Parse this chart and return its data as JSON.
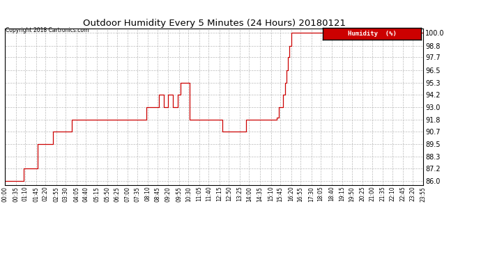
{
  "title": "Outdoor Humidity Every 5 Minutes (24 Hours) 20180121",
  "copyright": "Copyright 2018 Cartronics.com",
  "legend_label": "Humidity  (%)",
  "line_color": "#cc0000",
  "legend_bg": "#cc0000",
  "legend_text_color": "#ffffff",
  "background_color": "#ffffff",
  "grid_color": "#aaaaaa",
  "yticks": [
    86.0,
    87.2,
    88.3,
    89.5,
    90.7,
    91.8,
    93.0,
    94.2,
    95.3,
    96.5,
    97.7,
    98.8,
    100.0
  ],
  "ylim": [
    85.6,
    100.4
  ],
  "humidity_data": [
    86.0,
    86.0,
    86.0,
    86.0,
    86.0,
    86.0,
    86.0,
    86.0,
    86.0,
    86.0,
    86.0,
    86.0,
    87.2,
    87.2,
    87.2,
    87.2,
    87.2,
    87.2,
    87.2,
    87.2,
    87.2,
    89.5,
    89.5,
    89.5,
    89.5,
    89.5,
    89.5,
    89.5,
    89.5,
    89.5,
    89.5,
    90.7,
    90.7,
    90.7,
    90.7,
    90.7,
    90.7,
    90.7,
    90.7,
    90.7,
    90.7,
    90.7,
    90.7,
    91.8,
    91.8,
    91.8,
    91.8,
    91.8,
    91.8,
    91.8,
    91.8,
    91.8,
    91.8,
    91.8,
    91.8,
    91.8,
    91.8,
    91.8,
    91.8,
    91.8,
    91.8,
    91.8,
    91.8,
    91.8,
    91.8,
    91.8,
    91.8,
    91.8,
    91.8,
    91.8,
    91.8,
    91.8,
    91.8,
    91.8,
    91.8,
    91.8,
    91.8,
    91.8,
    91.8,
    91.8,
    91.8,
    91.8,
    91.8,
    91.8,
    91.8,
    91.8,
    91.8,
    91.8,
    91.8,
    91.8,
    91.8,
    93.0,
    93.0,
    93.0,
    93.0,
    93.0,
    93.0,
    93.0,
    93.0,
    94.2,
    94.2,
    94.2,
    93.0,
    93.0,
    93.0,
    94.2,
    94.2,
    94.2,
    93.0,
    93.0,
    93.0,
    94.2,
    94.2,
    95.3,
    95.3,
    95.3,
    95.3,
    95.3,
    95.3,
    91.8,
    91.8,
    91.8,
    91.8,
    91.8,
    91.8,
    91.8,
    91.8,
    91.8,
    91.8,
    91.8,
    91.8,
    91.8,
    91.8,
    91.8,
    91.8,
    91.8,
    91.8,
    91.8,
    91.8,
    91.8,
    90.7,
    90.7,
    90.7,
    90.7,
    90.7,
    90.7,
    90.7,
    90.7,
    90.7,
    90.7,
    90.7,
    90.7,
    90.7,
    90.7,
    90.7,
    91.8,
    91.8,
    91.8,
    91.8,
    91.8,
    91.8,
    91.8,
    91.8,
    91.8,
    91.8,
    91.8,
    91.8,
    91.8,
    91.8,
    91.8,
    91.8,
    91.8,
    91.8,
    91.8,
    91.8,
    92.0,
    93.0,
    93.0,
    93.0,
    94.2,
    95.3,
    96.5,
    97.7,
    98.8,
    100.0,
    100.0,
    100.0,
    100.0,
    100.0,
    100.0,
    100.0,
    100.0,
    100.0,
    100.0,
    100.0,
    100.0,
    100.0,
    100.0,
    100.0,
    100.0,
    100.0,
    100.0,
    100.0,
    100.0,
    100.0,
    100.0,
    100.0,
    100.0,
    100.0,
    100.0,
    100.0,
    100.0,
    100.0,
    100.0,
    100.0,
    100.0,
    100.0,
    100.0,
    100.0,
    100.0,
    100.0,
    100.0,
    100.0,
    100.0,
    100.0,
    100.0,
    100.0,
    100.0,
    100.0,
    100.0,
    100.0,
    100.0,
    100.0,
    100.0,
    100.0,
    100.0,
    100.0,
    100.0,
    100.0,
    100.0,
    100.0,
    100.0,
    100.0,
    100.0,
    100.0,
    100.0,
    100.0,
    100.0,
    100.0,
    100.0,
    100.0,
    100.0,
    100.0,
    100.0,
    100.0,
    100.0,
    100.0,
    100.0,
    100.0,
    100.0,
    100.0,
    100.0,
    100.0,
    100.0,
    100.0,
    100.0,
    100.0,
    100.0,
    100.0,
    100.0
  ],
  "xtick_labels": [
    "00:00",
    "00:35",
    "01:10",
    "01:45",
    "02:20",
    "02:55",
    "03:30",
    "04:05",
    "04:40",
    "05:15",
    "05:50",
    "06:25",
    "07:00",
    "07:35",
    "08:10",
    "08:45",
    "09:20",
    "09:55",
    "10:30",
    "11:05",
    "11:40",
    "12:15",
    "12:50",
    "13:25",
    "14:00",
    "14:35",
    "15:10",
    "15:45",
    "16:20",
    "16:55",
    "17:30",
    "18:05",
    "18:40",
    "19:15",
    "19:50",
    "20:25",
    "21:00",
    "21:35",
    "22:10",
    "22:45",
    "23:20",
    "23:55"
  ]
}
